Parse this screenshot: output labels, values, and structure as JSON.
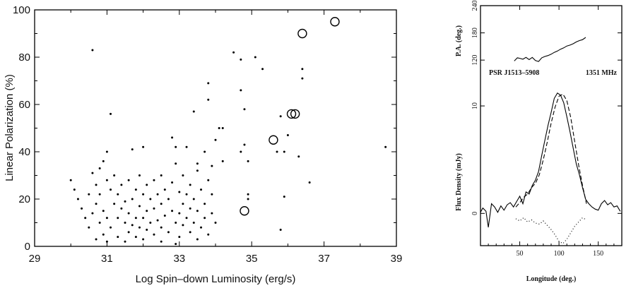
{
  "chart_data": [
    {
      "type": "scatter",
      "title": "",
      "xlabel": "Log Spin–down Luminosity (erg/s)",
      "ylabel": "Linear Polarization (%)",
      "xlim": [
        29,
        39
      ],
      "ylim": [
        0,
        100
      ],
      "xticks": [
        29,
        31,
        33,
        35,
        37,
        39
      ],
      "yticks": [
        0,
        20,
        40,
        60,
        80,
        100
      ],
      "grid": false,
      "legend": "none",
      "series": [
        {
          "marker": "dot",
          "points": [
            [
              30.0,
              28
            ],
            [
              30.1,
              24
            ],
            [
              30.2,
              20
            ],
            [
              30.3,
              16
            ],
            [
              30.4,
              12
            ],
            [
              30.5,
              22
            ],
            [
              30.5,
              8
            ],
            [
              30.6,
              31
            ],
            [
              30.6,
              14
            ],
            [
              30.7,
              26
            ],
            [
              30.7,
              18
            ],
            [
              30.7,
              3
            ],
            [
              30.8,
              33
            ],
            [
              30.8,
              10
            ],
            [
              30.8,
              22
            ],
            [
              30.9,
              36
            ],
            [
              30.9,
              5
            ],
            [
              30.9,
              15
            ],
            [
              31.0,
              40
            ],
            [
              31.0,
              28
            ],
            [
              31.0,
              12
            ],
            [
              31.0,
              2
            ],
            [
              31.1,
              24
            ],
            [
              31.1,
              8
            ],
            [
              31.2,
              18
            ],
            [
              31.2,
              30
            ],
            [
              31.3,
              12
            ],
            [
              31.3,
              4
            ],
            [
              31.3,
              22
            ],
            [
              31.4,
              26
            ],
            [
              31.4,
              16
            ],
            [
              31.5,
              19
            ],
            [
              31.5,
              10
            ],
            [
              31.5,
              2
            ],
            [
              31.6,
              28
            ],
            [
              31.6,
              14
            ],
            [
              31.6,
              6
            ],
            [
              31.7,
              41
            ],
            [
              31.7,
              20
            ],
            [
              31.7,
              9
            ],
            [
              31.8,
              24
            ],
            [
              31.8,
              12
            ],
            [
              31.8,
              4
            ],
            [
              31.9,
              30
            ],
            [
              31.9,
              17
            ],
            [
              31.9,
              8
            ],
            [
              32.0,
              42
            ],
            [
              32.0,
              22
            ],
            [
              32.0,
              12
            ],
            [
              32.0,
              3
            ],
            [
              32.1,
              26
            ],
            [
              32.1,
              15
            ],
            [
              32.1,
              7
            ],
            [
              32.2,
              20
            ],
            [
              32.2,
              10
            ],
            [
              32.3,
              28
            ],
            [
              32.3,
              16
            ],
            [
              32.3,
              5
            ],
            [
              32.4,
              22
            ],
            [
              32.4,
              11
            ],
            [
              32.5,
              30
            ],
            [
              32.5,
              18
            ],
            [
              32.5,
              8
            ],
            [
              32.5,
              2
            ],
            [
              32.6,
              24
            ],
            [
              32.6,
              13
            ],
            [
              32.7,
              20
            ],
            [
              32.7,
              6
            ],
            [
              32.8,
              27
            ],
            [
              32.8,
              15
            ],
            [
              32.9,
              10
            ],
            [
              32.9,
              35
            ],
            [
              32.9,
              1
            ],
            [
              33.0,
              23
            ],
            [
              33.0,
              14
            ],
            [
              33.0,
              4
            ],
            [
              33.1,
              30
            ],
            [
              33.1,
              18
            ],
            [
              33.1,
              9
            ],
            [
              33.2,
              42
            ],
            [
              33.2,
              22
            ],
            [
              33.2,
              12
            ],
            [
              33.3,
              26
            ],
            [
              33.3,
              16
            ],
            [
              33.3,
              6
            ],
            [
              33.4,
              20
            ],
            [
              33.4,
              10
            ],
            [
              33.5,
              32
            ],
            [
              33.5,
              15
            ],
            [
              33.5,
              3
            ],
            [
              33.6,
              24
            ],
            [
              33.6,
              8
            ],
            [
              33.7,
              18
            ],
            [
              33.7,
              12
            ],
            [
              33.8,
              28
            ],
            [
              33.8,
              5
            ],
            [
              33.9,
              22
            ],
            [
              33.9,
              14
            ],
            [
              34.0,
              10
            ],
            [
              33.4,
              57
            ],
            [
              33.5,
              35
            ],
            [
              33.7,
              40
            ],
            [
              33.8,
              62
            ],
            [
              33.8,
              69
            ],
            [
              33.9,
              34
            ],
            [
              34.0,
              45
            ],
            [
              34.1,
              50
            ],
            [
              34.2,
              50
            ],
            [
              34.2,
              36
            ],
            [
              32.8,
              46
            ],
            [
              32.9,
              42
            ],
            [
              34.5,
              82
            ],
            [
              34.7,
              79
            ],
            [
              34.7,
              66
            ],
            [
              34.8,
              58
            ],
            [
              34.8,
              43
            ],
            [
              34.9,
              36
            ],
            [
              34.9,
              22
            ],
            [
              34.7,
              40
            ],
            [
              35.1,
              80
            ],
            [
              35.3,
              75
            ],
            [
              35.7,
              40
            ],
            [
              35.8,
              55
            ],
            [
              35.9,
              40
            ],
            [
              36.0,
              47
            ],
            [
              36.3,
              38
            ],
            [
              36.4,
              71
            ],
            [
              36.4,
              75
            ],
            [
              36.6,
              27
            ],
            [
              38.7,
              42
            ],
            [
              30.6,
              83
            ],
            [
              31.1,
              56
            ],
            [
              35.8,
              7
            ],
            [
              35.9,
              21
            ],
            [
              34.9,
              20
            ]
          ]
        },
        {
          "marker": "open-circle",
          "points": [
            [
              37.3,
              95
            ],
            [
              36.4,
              90
            ],
            [
              36.1,
              56
            ],
            [
              36.2,
              56
            ],
            [
              35.6,
              45
            ],
            [
              34.8,
              15
            ]
          ]
        }
      ]
    },
    {
      "type": "line",
      "title": "",
      "xlabel": "Longitude (deg.)",
      "ylabel": "Flux Density (mJy)",
      "xlim": [
        0,
        180
      ],
      "ylim": [
        -3,
        12.5
      ],
      "xticks": [
        50,
        100,
        150
      ],
      "yticks": [
        0,
        10
      ],
      "annotations": {
        "source": "PSR J1513–5908",
        "frequency": "1351 MHz"
      },
      "series": [
        {
          "style": "solid",
          "x": [
            0,
            3,
            7,
            10,
            14,
            18,
            22,
            26,
            30,
            34,
            38,
            42,
            46,
            50,
            54,
            58,
            62,
            66,
            70,
            74,
            78,
            82,
            86,
            90,
            94,
            98,
            102,
            106,
            110,
            114,
            118,
            122,
            126,
            130,
            134,
            138,
            142,
            146,
            150,
            154,
            158,
            162,
            166,
            170,
            174,
            178
          ],
          "y": [
            0.1,
            0.5,
            0.2,
            -1.3,
            0.9,
            0.6,
            0.1,
            0.7,
            0.3,
            0.8,
            1.0,
            0.6,
            1.1,
            1.6,
            0.9,
            2.0,
            1.8,
            2.6,
            3.1,
            3.9,
            5.4,
            6.8,
            8.2,
            9.4,
            10.7,
            11.2,
            11.0,
            10.3,
            9.0,
            7.6,
            6.1,
            4.6,
            3.6,
            2.4,
            1.3,
            0.9,
            0.6,
            0.4,
            0.3,
            0.9,
            1.2,
            0.8,
            1.0,
            0.6,
            0.7,
            0.2
          ]
        },
        {
          "style": "dashed",
          "x": [
            45,
            50,
            55,
            60,
            65,
            70,
            75,
            80,
            85,
            90,
            95,
            100,
            105,
            110,
            115,
            120,
            125,
            130,
            135
          ],
          "y": [
            0.6,
            1.0,
            1.5,
            1.8,
            2.4,
            2.8,
            3.6,
            5.0,
            6.6,
            8.4,
            9.9,
            10.9,
            11.1,
            10.5,
            8.9,
            6.7,
            4.5,
            2.6,
            0.9
          ]
        },
        {
          "style": "dotted",
          "x": [
            45,
            50,
            55,
            60,
            65,
            70,
            75,
            80,
            85,
            90,
            95,
            100,
            105,
            110,
            115,
            120,
            125,
            130,
            135
          ],
          "y": [
            -0.5,
            -0.7,
            -0.4,
            -0.8,
            -0.6,
            -0.9,
            -1.0,
            -0.7,
            -1.1,
            -1.5,
            -2.0,
            -2.6,
            -2.8,
            -2.4,
            -1.8,
            -1.2,
            -0.8,
            -0.4,
            -0.6
          ]
        }
      ],
      "pa_panel": {
        "ylabel": "P.A. (deg.)",
        "ylim": [
          100,
          240
        ],
        "yticks": [
          120,
          180,
          240
        ],
        "x": [
          43,
          47,
          50,
          54,
          58,
          62,
          66,
          70,
          74,
          78,
          82,
          86,
          90,
          94,
          98,
          102,
          106,
          110,
          114,
          118,
          122,
          126,
          130,
          134
        ],
        "y": [
          118,
          125,
          124,
          122,
          126,
          121,
          126,
          119,
          117,
          125,
          128,
          130,
          133,
          137,
          140,
          144,
          147,
          151,
          153,
          156,
          160,
          163,
          165,
          170
        ]
      }
    }
  ]
}
